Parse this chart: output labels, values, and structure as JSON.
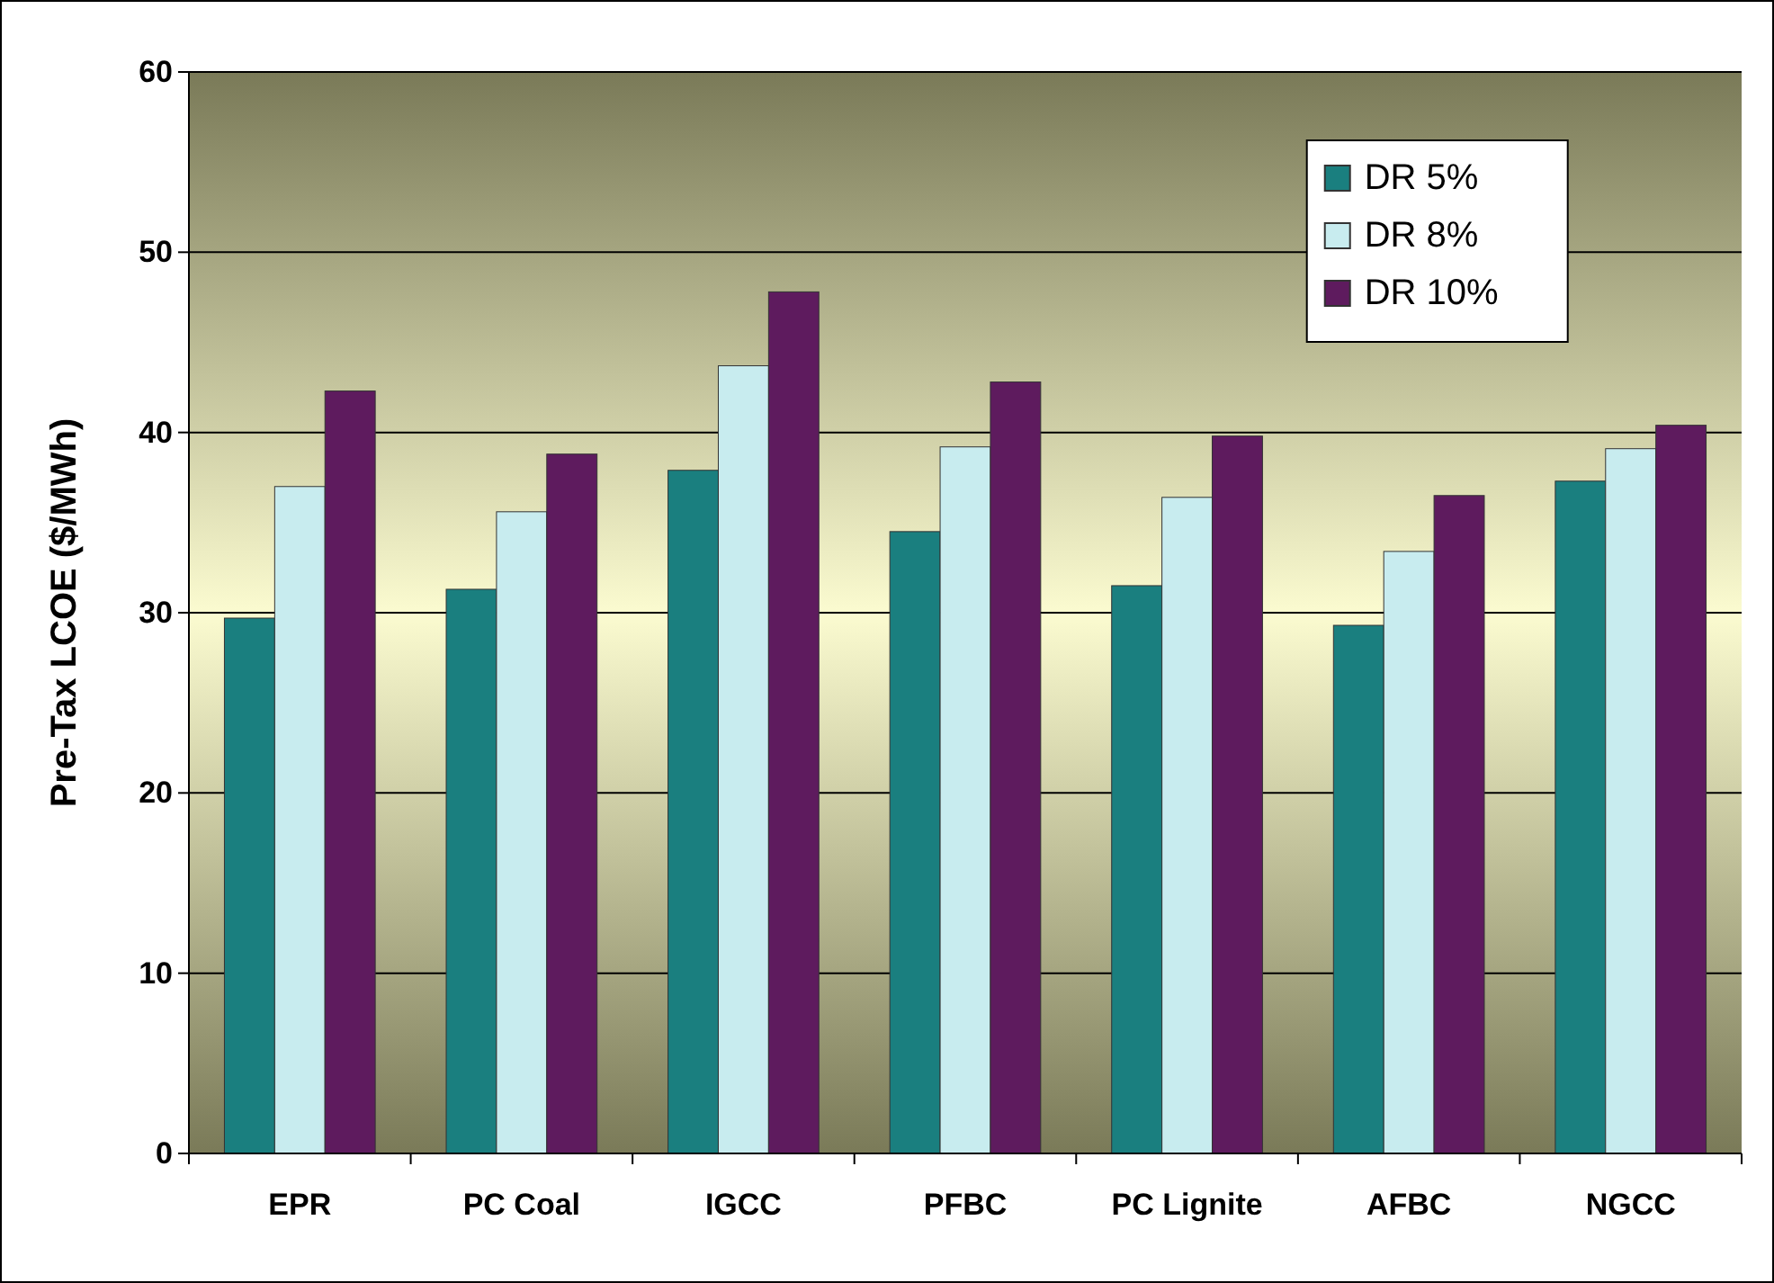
{
  "chart_data": {
    "type": "bar",
    "ylabel": "Pre-Tax LCOE ($/MWh)",
    "categories": [
      "EPR",
      "PC Coal",
      "IGCC",
      "PFBC",
      "PC Lignite",
      "AFBC",
      "NGCC"
    ],
    "series": [
      {
        "name": "DR 5%",
        "color": "#1a7f7f",
        "values": [
          29.7,
          31.3,
          37.9,
          34.5,
          31.5,
          29.3,
          37.3
        ]
      },
      {
        "name": "DR 8%",
        "color": "#c8ecef",
        "values": [
          37.0,
          35.6,
          43.7,
          39.2,
          36.4,
          33.4,
          39.1
        ]
      },
      {
        "name": "DR 10%",
        "color": "#5e1b5e",
        "values": [
          42.3,
          38.8,
          47.8,
          42.8,
          39.8,
          36.5,
          40.4
        ]
      }
    ],
    "ylim": [
      0,
      60
    ],
    "yticks": [
      0,
      10,
      20,
      30,
      40,
      50,
      60
    ],
    "grid": "y",
    "legend": "top right"
  }
}
